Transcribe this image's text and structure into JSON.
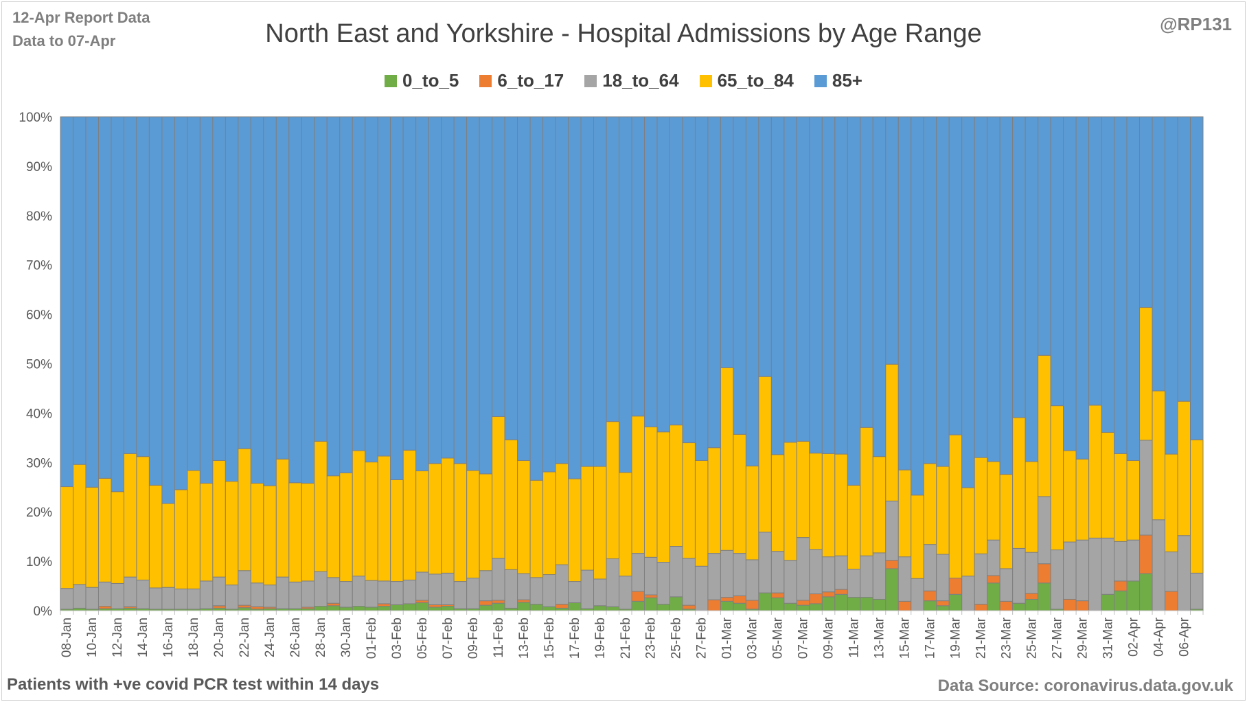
{
  "header": {
    "report_line1": "12-Apr Report Data",
    "report_line2": "Data to 07-Apr",
    "handle": "@RP131"
  },
  "footer": {
    "note": "Patients with  +ve covid PCR test within 14 days",
    "source": "Data Source: coronavirus.data.gov.uk"
  },
  "chart_data": {
    "type": "bar",
    "stacked": "percent",
    "title": "North East and Yorkshire - Hospital Admissions by Age Range",
    "xlabel": "",
    "ylabel": "",
    "ylim": [
      0,
      100
    ],
    "y_ticks": [
      "0%",
      "10%",
      "20%",
      "30%",
      "40%",
      "50%",
      "60%",
      "70%",
      "80%",
      "90%",
      "100%"
    ],
    "legend_position": "top",
    "categories": [
      "08-Jan",
      "09-Jan",
      "10-Jan",
      "11-Jan",
      "12-Jan",
      "13-Jan",
      "14-Jan",
      "15-Jan",
      "16-Jan",
      "17-Jan",
      "18-Jan",
      "19-Jan",
      "20-Jan",
      "21-Jan",
      "22-Jan",
      "23-Jan",
      "24-Jan",
      "25-Jan",
      "26-Jan",
      "27-Jan",
      "28-Jan",
      "29-Jan",
      "30-Jan",
      "31-Jan",
      "01-Feb",
      "02-Feb",
      "03-Feb",
      "04-Feb",
      "05-Feb",
      "06-Feb",
      "07-Feb",
      "08-Feb",
      "09-Feb",
      "10-Feb",
      "11-Feb",
      "12-Feb",
      "13-Feb",
      "14-Feb",
      "15-Feb",
      "16-Feb",
      "17-Feb",
      "18-Feb",
      "19-Feb",
      "20-Feb",
      "21-Feb",
      "22-Feb",
      "23-Feb",
      "24-Feb",
      "25-Feb",
      "26-Feb",
      "27-Feb",
      "28-Feb",
      "01-Mar",
      "02-Mar",
      "03-Mar",
      "04-Mar",
      "05-Mar",
      "06-Mar",
      "07-Mar",
      "08-Mar",
      "09-Mar",
      "10-Mar",
      "11-Mar",
      "12-Mar",
      "13-Mar",
      "14-Mar",
      "15-Mar",
      "16-Mar",
      "17-Mar",
      "18-Mar",
      "19-Mar",
      "20-Mar",
      "21-Mar",
      "22-Mar",
      "23-Mar",
      "24-Mar",
      "25-Mar",
      "26-Mar",
      "27-Mar",
      "28-Mar",
      "29-Mar",
      "30-Mar",
      "31-Mar",
      "01-Apr",
      "02-Apr",
      "03-Apr",
      "04-Apr",
      "05-Apr",
      "06-Apr",
      "07-Apr"
    ],
    "tick_labels": [
      "08-Jan",
      "10-Jan",
      "12-Jan",
      "14-Jan",
      "16-Jan",
      "18-Jan",
      "20-Jan",
      "22-Jan",
      "24-Jan",
      "26-Jan",
      "28-Jan",
      "30-Jan",
      "01-Feb",
      "03-Feb",
      "05-Feb",
      "07-Feb",
      "09-Feb",
      "11-Feb",
      "13-Feb",
      "15-Feb",
      "17-Feb",
      "19-Feb",
      "21-Feb",
      "23-Feb",
      "25-Feb",
      "27-Feb",
      "01-Mar",
      "03-Mar",
      "05-Mar",
      "07-Mar",
      "09-Mar",
      "11-Mar",
      "13-Mar",
      "15-Mar",
      "17-Mar",
      "19-Mar",
      "21-Mar",
      "23-Mar",
      "25-Mar",
      "27-Mar",
      "29-Mar",
      "31-Mar",
      "02-Apr",
      "04-Apr",
      "06-Apr"
    ],
    "series": [
      {
        "name": "0_to_5",
        "color": "#70ad47",
        "values": [
          0.3,
          0.5,
          0.3,
          0.4,
          0.4,
          0.5,
          0.4,
          0.3,
          0.3,
          0.3,
          0.3,
          0.4,
          0.5,
          0.3,
          0.6,
          0.3,
          0.4,
          0.4,
          0.4,
          0.4,
          0.9,
          1.0,
          0.7,
          0.9,
          0.7,
          0.9,
          1.2,
          1.4,
          1.6,
          0.7,
          0.9,
          0.4,
          0.4,
          1.1,
          1.5,
          0.5,
          1.7,
          1.3,
          0.8,
          0.5,
          1.6,
          0.4,
          1.0,
          0.8,
          0.3,
          1.9,
          2.6,
          1.3,
          2.8,
          0.3,
          0,
          0,
          1.9,
          1.5,
          0.3,
          3.6,
          2.6,
          1.5,
          1.1,
          1.4,
          2.8,
          3.3,
          2.7,
          2.7,
          2.3,
          8.5,
          0,
          0,
          2.0,
          1.0,
          3.3,
          0,
          0,
          5.6,
          0,
          1.5,
          2.3,
          5.6,
          0.3,
          0,
          0,
          0,
          3.3,
          4.0,
          6.0,
          7.5,
          0,
          0,
          0,
          0.3
        ]
      },
      {
        "name": "6_to_17",
        "color": "#ed7d31",
        "values": [
          0,
          0,
          0,
          0.5,
          0,
          0.3,
          0,
          0,
          0,
          0,
          0,
          0,
          0.5,
          0,
          0.5,
          0.5,
          0.3,
          0,
          0,
          0.3,
          0,
          0.5,
          0,
          0,
          0,
          0.5,
          0,
          0,
          0.5,
          0.5,
          0.3,
          0,
          0,
          0.9,
          0.6,
          0,
          0.5,
          0,
          0,
          0.8,
          0,
          0,
          0,
          0,
          0,
          2.0,
          0.6,
          0,
          0,
          0.8,
          0,
          2.2,
          0.8,
          1.5,
          1.8,
          0,
          1.0,
          0,
          1.0,
          2.0,
          1.0,
          1.0,
          0,
          0,
          0,
          1.7,
          1.9,
          0,
          2.0,
          1.0,
          3.3,
          0,
          1.3,
          1.5,
          1.9,
          0,
          1.2,
          3.9,
          0,
          2.3,
          2.0,
          0,
          0,
          2.0,
          0,
          7.8,
          0,
          3.9,
          0,
          0
        ]
      },
      {
        "name": "18_to_64",
        "color": "#a5a5a5",
        "values": [
          4.2,
          4.8,
          4.4,
          4.9,
          5.1,
          6.0,
          5.8,
          4.3,
          4.4,
          4.1,
          4.1,
          5.6,
          5.8,
          4.9,
          7.0,
          4.8,
          4.5,
          6.4,
          5.4,
          5.3,
          7.0,
          5.2,
          5.2,
          6.1,
          5.4,
          4.6,
          4.7,
          4.8,
          5.7,
          6.2,
          6.4,
          5.5,
          6.2,
          6.1,
          8.5,
          7.8,
          5.3,
          5.4,
          6.5,
          8.0,
          4.3,
          7.8,
          5.4,
          9.7,
          6.7,
          7.7,
          7.6,
          8.5,
          10.2,
          9.5,
          9.0,
          9.4,
          9.5,
          8.6,
          8.2,
          12.3,
          8.4,
          8.7,
          12.7,
          9.0,
          7.1,
          6.8,
          5.7,
          8.4,
          9.4,
          12.0,
          9.0,
          6.5,
          9.4,
          9.4,
          0,
          7.0,
          10.2,
          7.2,
          6.6,
          11.1,
          8.3,
          13.6,
          12.0,
          11.6,
          12.3,
          14.7,
          11.4,
          8.0,
          8.3,
          19.2,
          18.4,
          8.0,
          15.2,
          7.3
        ]
      },
      {
        "name": "65_to_84",
        "color": "#ffc000",
        "values": [
          20.6,
          24.3,
          20.3,
          21.0,
          18.6,
          25.0,
          25.0,
          20.8,
          17.0,
          20.1,
          24.0,
          19.8,
          23.6,
          21.0,
          24.7,
          20.2,
          20.1,
          23.9,
          20.1,
          19.8,
          26.4,
          20.6,
          22.0,
          25.4,
          24.0,
          25.3,
          20.6,
          26.3,
          20.5,
          22.4,
          23.3,
          23.9,
          21.8,
          19.6,
          28.7,
          26.3,
          22.9,
          19.7,
          20.8,
          20.5,
          20.8,
          21.0,
          22.8,
          27.8,
          21.0,
          27.8,
          26.4,
          26.4,
          24.6,
          23.4,
          21.4,
          21.4,
          37.0,
          24.1,
          19.0,
          31.5,
          19.6,
          23.9,
          19.5,
          19.5,
          20.9,
          20.6,
          17.0,
          26.0,
          19.5,
          27.7,
          17.6,
          16.9,
          16.4,
          17.8,
          29.0,
          17.9,
          19.5,
          15.9,
          19.1,
          26.5,
          18.4,
          28.6,
          29.2,
          18.5,
          16.4,
          26.9,
          21.4,
          17.8,
          16.1,
          26.9,
          26.1,
          19.8,
          27.2,
          27.0
        ]
      },
      {
        "name": "85+",
        "color": "#5b9bd5",
        "values": [
          74.9,
          70.4,
          75.0,
          73.2,
          75.9,
          68.2,
          68.8,
          74.6,
          78.3,
          75.5,
          71.6,
          74.2,
          69.6,
          73.8,
          67.2,
          74.2,
          74.7,
          69.3,
          74.1,
          74.2,
          65.7,
          72.7,
          72.1,
          67.6,
          69.9,
          68.7,
          73.5,
          67.5,
          71.7,
          70.2,
          69.1,
          70.2,
          71.6,
          72.3,
          60.7,
          65.4,
          69.6,
          73.6,
          71.9,
          70.2,
          73.3,
          70.8,
          70.8,
          61.7,
          72.0,
          60.6,
          62.8,
          63.8,
          62.4,
          66.0,
          69.6,
          67.0,
          50.8,
          64.3,
          70.7,
          52.6,
          68.4,
          65.9,
          65.7,
          68.1,
          68.2,
          68.3,
          74.6,
          62.9,
          68.8,
          50.1,
          71.5,
          76.6,
          70.2,
          70.8,
          64.4,
          75.1,
          69.0,
          69.8,
          72.4,
          60.9,
          69.8,
          48.3,
          58.5,
          67.6,
          69.3,
          58.4,
          63.9,
          68.2,
          69.6,
          38.6,
          55.5,
          68.3,
          57.6,
          65.4
        ]
      }
    ]
  }
}
